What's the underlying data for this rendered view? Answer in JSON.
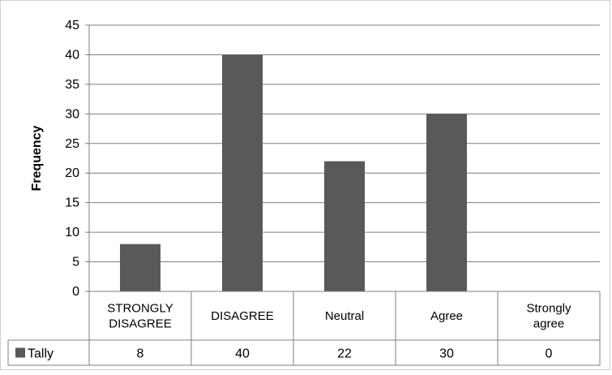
{
  "chart_data": {
    "type": "bar",
    "categories": [
      "STRONGLY DISAGREE",
      "DISAGREE",
      "Neutral",
      "Agree",
      "Strongly agree"
    ],
    "category_lines": [
      [
        "STRONGLY",
        "DISAGREE"
      ],
      [
        "DISAGREE"
      ],
      [
        "Neutral"
      ],
      [
        "Agree"
      ],
      [
        "Strongly",
        "agree"
      ]
    ],
    "series": [
      {
        "name": "Tally",
        "values": [
          8,
          40,
          22,
          30,
          0
        ],
        "color": "#595959"
      }
    ],
    "value_labels": [
      "8",
      "40",
      "22",
      "30",
      "0"
    ],
    "ylabel": "Frequency",
    "xlabel": "",
    "title": "",
    "ylim": [
      0,
      45
    ],
    "yticks": [
      0,
      5,
      10,
      15,
      20,
      25,
      30,
      35,
      40,
      45
    ],
    "grid": true,
    "data_table": true
  }
}
